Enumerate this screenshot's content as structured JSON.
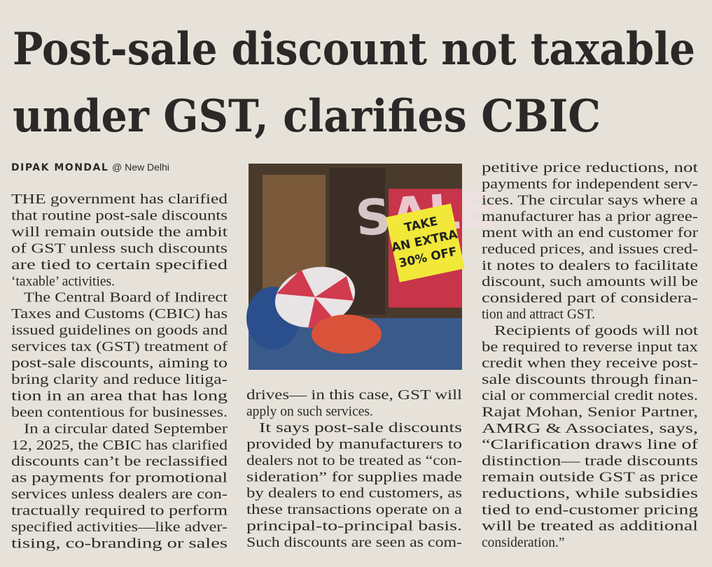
{
  "header": {
    "title_lines": [
      "Post-sale discount not taxable",
      "under GST, clarifies CBIC"
    ]
  },
  "byline": {
    "author": "DIPAK MONDAL",
    "location": "@ New Delhi"
  },
  "photo": {
    "sign": "SALE",
    "sticker_lines": [
      "TAKE",
      "AN EXTRA",
      "30% OFF"
    ]
  },
  "columns": [
    [
      "THE government has clarified",
      "that routine post-sale discounts",
      "will remain outside the ambit",
      "of GST unless such discounts",
      "are tied to certain specified",
      "‘taxable’ activities.",
      "The Central Board of Indirect",
      "Taxes and Customs (CBIC) has",
      "issued guidelines on goods and",
      "services tax (GST) treatment of",
      "post-sale discounts, aiming to",
      "bring clarity and reduce litiga-",
      "tion in an area that has long",
      "been contentious for businesses.",
      "In a circular dated September",
      "12, 2025, the CBIC has clarified",
      "discounts can’t be reclassified",
      "as payments for promotional",
      "services unless dealers are con-",
      "tractually required to perform",
      "specified activities—like adver-",
      "tising, co-branding or sales"
    ],
    [
      "drives— in this case, GST will",
      "apply on such services.",
      "It says post-sale discounts",
      "provided by manufacturers to",
      "dealers not to be treated as “con-",
      "sideration” for supplies made",
      "by dealers to end customers, as",
      "these transactions operate on a",
      "principal-to-principal basis.",
      "Such discounts are seen as com-"
    ],
    [
      "petitive price reductions, not",
      "payments for independent serv-",
      "ices. The circular says where a",
      "manufacturer has a prior agree-",
      "ment with an end customer for",
      "reduced prices, and issues cred-",
      "it notes to dealers to facilitate",
      "discount, such amounts will be",
      "considered part of considera-",
      "tion and attract GST.",
      "Recipients of goods will not",
      "be required to reverse input tax",
      "credit when they receive post-",
      "sale discounts through finan-",
      "cial or commercial credit notes.",
      "Rajat Mohan, Senior Partner,",
      "AMRG & Associates, says,",
      "“Clarification draws line of",
      "distinction— trade discounts",
      "remain outside GST as price",
      "reductions, while subsidies",
      "tied to end-customer pricing",
      "will be treated as additional",
      "consideration.”"
    ]
  ]
}
